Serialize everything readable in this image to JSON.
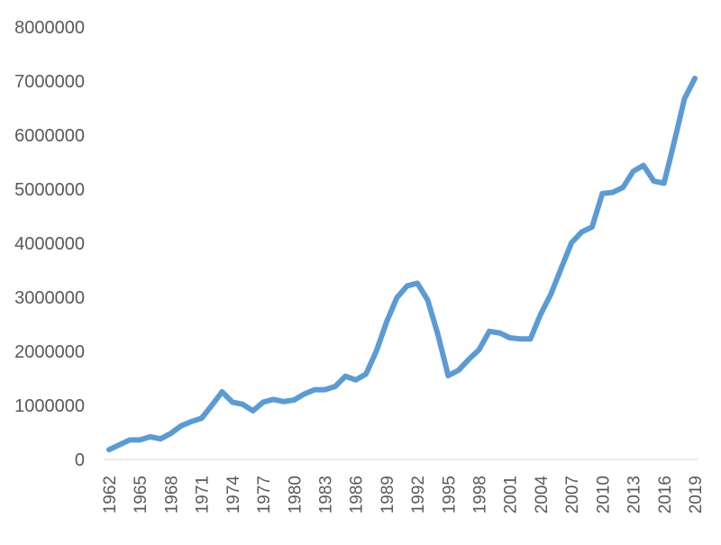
{
  "chart_data": {
    "type": "line",
    "title": "",
    "xlabel": "",
    "ylabel": "",
    "ylim": [
      0,
      8000000
    ],
    "yticks": [
      0,
      1000000,
      2000000,
      3000000,
      4000000,
      5000000,
      6000000,
      7000000,
      8000000
    ],
    "ytick_labels": [
      "0",
      "1000000",
      "2000000",
      "3000000",
      "4000000",
      "5000000",
      "6000000",
      "7000000",
      "8000000"
    ],
    "xtick_labels": [
      "1962",
      "1965",
      "1968",
      "1971",
      "1974",
      "1977",
      "1980",
      "1983",
      "1986",
      "1989",
      "1992",
      "1995",
      "1998",
      "2001",
      "2004",
      "2007",
      "2010",
      "2013",
      "2016",
      "2019"
    ],
    "grid": false,
    "legend": "none",
    "line_color": "#5B9BD5",
    "x": [
      1962,
      1963,
      1964,
      1965,
      1966,
      1967,
      1968,
      1969,
      1970,
      1971,
      1972,
      1973,
      1974,
      1975,
      1976,
      1977,
      1978,
      1979,
      1980,
      1981,
      1982,
      1983,
      1984,
      1985,
      1986,
      1987,
      1988,
      1989,
      1990,
      1991,
      1992,
      1993,
      1994,
      1995,
      1996,
      1997,
      1998,
      1999,
      2000,
      2001,
      2002,
      2003,
      2004,
      2005,
      2006,
      2007,
      2008,
      2009,
      2010,
      2011,
      2012,
      2013,
      2014,
      2015,
      2016,
      2017,
      2018,
      2019
    ],
    "series": [
      {
        "values": [
          180000,
          270000,
          360000,
          360000,
          420000,
          380000,
          480000,
          620000,
          700000,
          760000,
          1000000,
          1250000,
          1060000,
          1020000,
          900000,
          1060000,
          1110000,
          1070000,
          1100000,
          1210000,
          1290000,
          1290000,
          1350000,
          1540000,
          1470000,
          1580000,
          2000000,
          2540000,
          2990000,
          3210000,
          3260000,
          2950000,
          2310000,
          1550000,
          1650000,
          1850000,
          2030000,
          2370000,
          2340000,
          2250000,
          2230000,
          2230000,
          2690000,
          3060000,
          3540000,
          4010000,
          4210000,
          4300000,
          4920000,
          4940000,
          5030000,
          5330000,
          5440000,
          5150000,
          5110000,
          5880000,
          6680000,
          7050000
        ]
      }
    ]
  }
}
